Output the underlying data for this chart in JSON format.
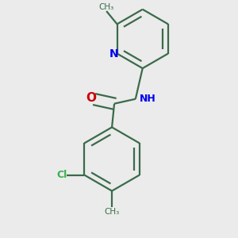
{
  "background_color": "#ebebeb",
  "bond_color": "#3a6b4a",
  "N_color": "#0000ee",
  "O_color": "#cc0000",
  "Cl_color": "#3cb050",
  "lw": 1.6,
  "dbo": 0.012,
  "figsize": [
    3.0,
    3.0
  ],
  "dpi": 100,
  "xlim": [
    0.0,
    1.0
  ],
  "ylim": [
    0.0,
    1.0
  ]
}
